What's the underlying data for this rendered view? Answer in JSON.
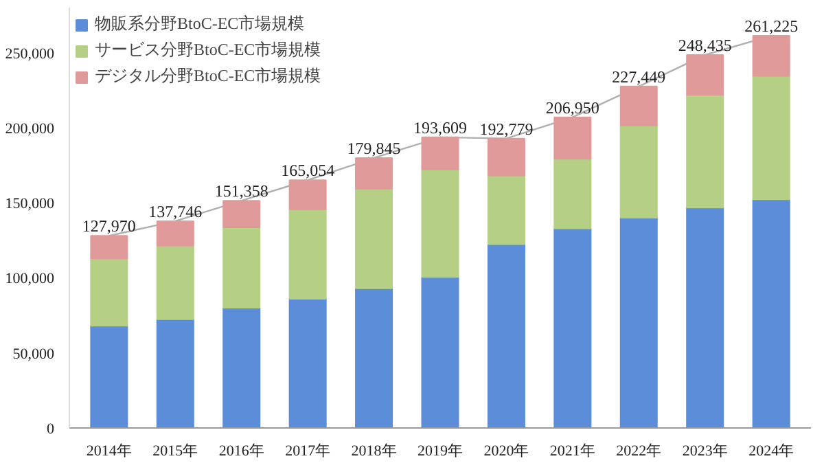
{
  "chart_data": {
    "type": "bar",
    "stacked": true,
    "categories": [
      "2014年",
      "2015年",
      "2016年",
      "2017年",
      "2018年",
      "2019年",
      "2020年",
      "2021年",
      "2022年",
      "2023年",
      "2024年"
    ],
    "series": [
      {
        "name": "物販系分野BtoC-EC市場規模",
        "color": "#5b8dd9",
        "values": [
          68043,
          72398,
          80043,
          86008,
          92992,
          100515,
          122333,
          132865,
          139997,
          146760,
          152194
        ]
      },
      {
        "name": "サービス分野BtoC-EC市場規模",
        "color": "#b5cf85",
        "values": [
          44816,
          49014,
          53532,
          59568,
          66471,
          71672,
          45832,
          46424,
          61477,
          75169,
          82321
        ]
      },
      {
        "name": "デジタル分野BtoC-EC市場規模",
        "color": "#e09a9a",
        "values": [
          15111,
          16334,
          17783,
          19478,
          20382,
          21422,
          24614,
          27661,
          25975,
          26506,
          26710
        ]
      },
      {
        "type": "line",
        "color": "#b0b0b0",
        "values": [
          127970,
          137746,
          151358,
          165054,
          179845,
          193609,
          192779,
          206950,
          227449,
          248435,
          261225
        ]
      }
    ],
    "totals": [
      "127,970",
      "137,746",
      "151,358",
      "165,054",
      "179,845",
      "193,609",
      "192,779",
      "206,950",
      "227,449",
      "248,435",
      "261,225"
    ],
    "ylim": [
      0,
      280000
    ],
    "yticks": [
      {
        "value": 0,
        "label": "0"
      },
      {
        "value": 50000,
        "label": "50,000"
      },
      {
        "value": 100000,
        "label": "100,000"
      },
      {
        "value": 150000,
        "label": "150,000"
      },
      {
        "value": 200000,
        "label": "200,000"
      },
      {
        "value": 250000,
        "label": "250,000"
      }
    ],
    "grid": false,
    "legend": "top left"
  }
}
